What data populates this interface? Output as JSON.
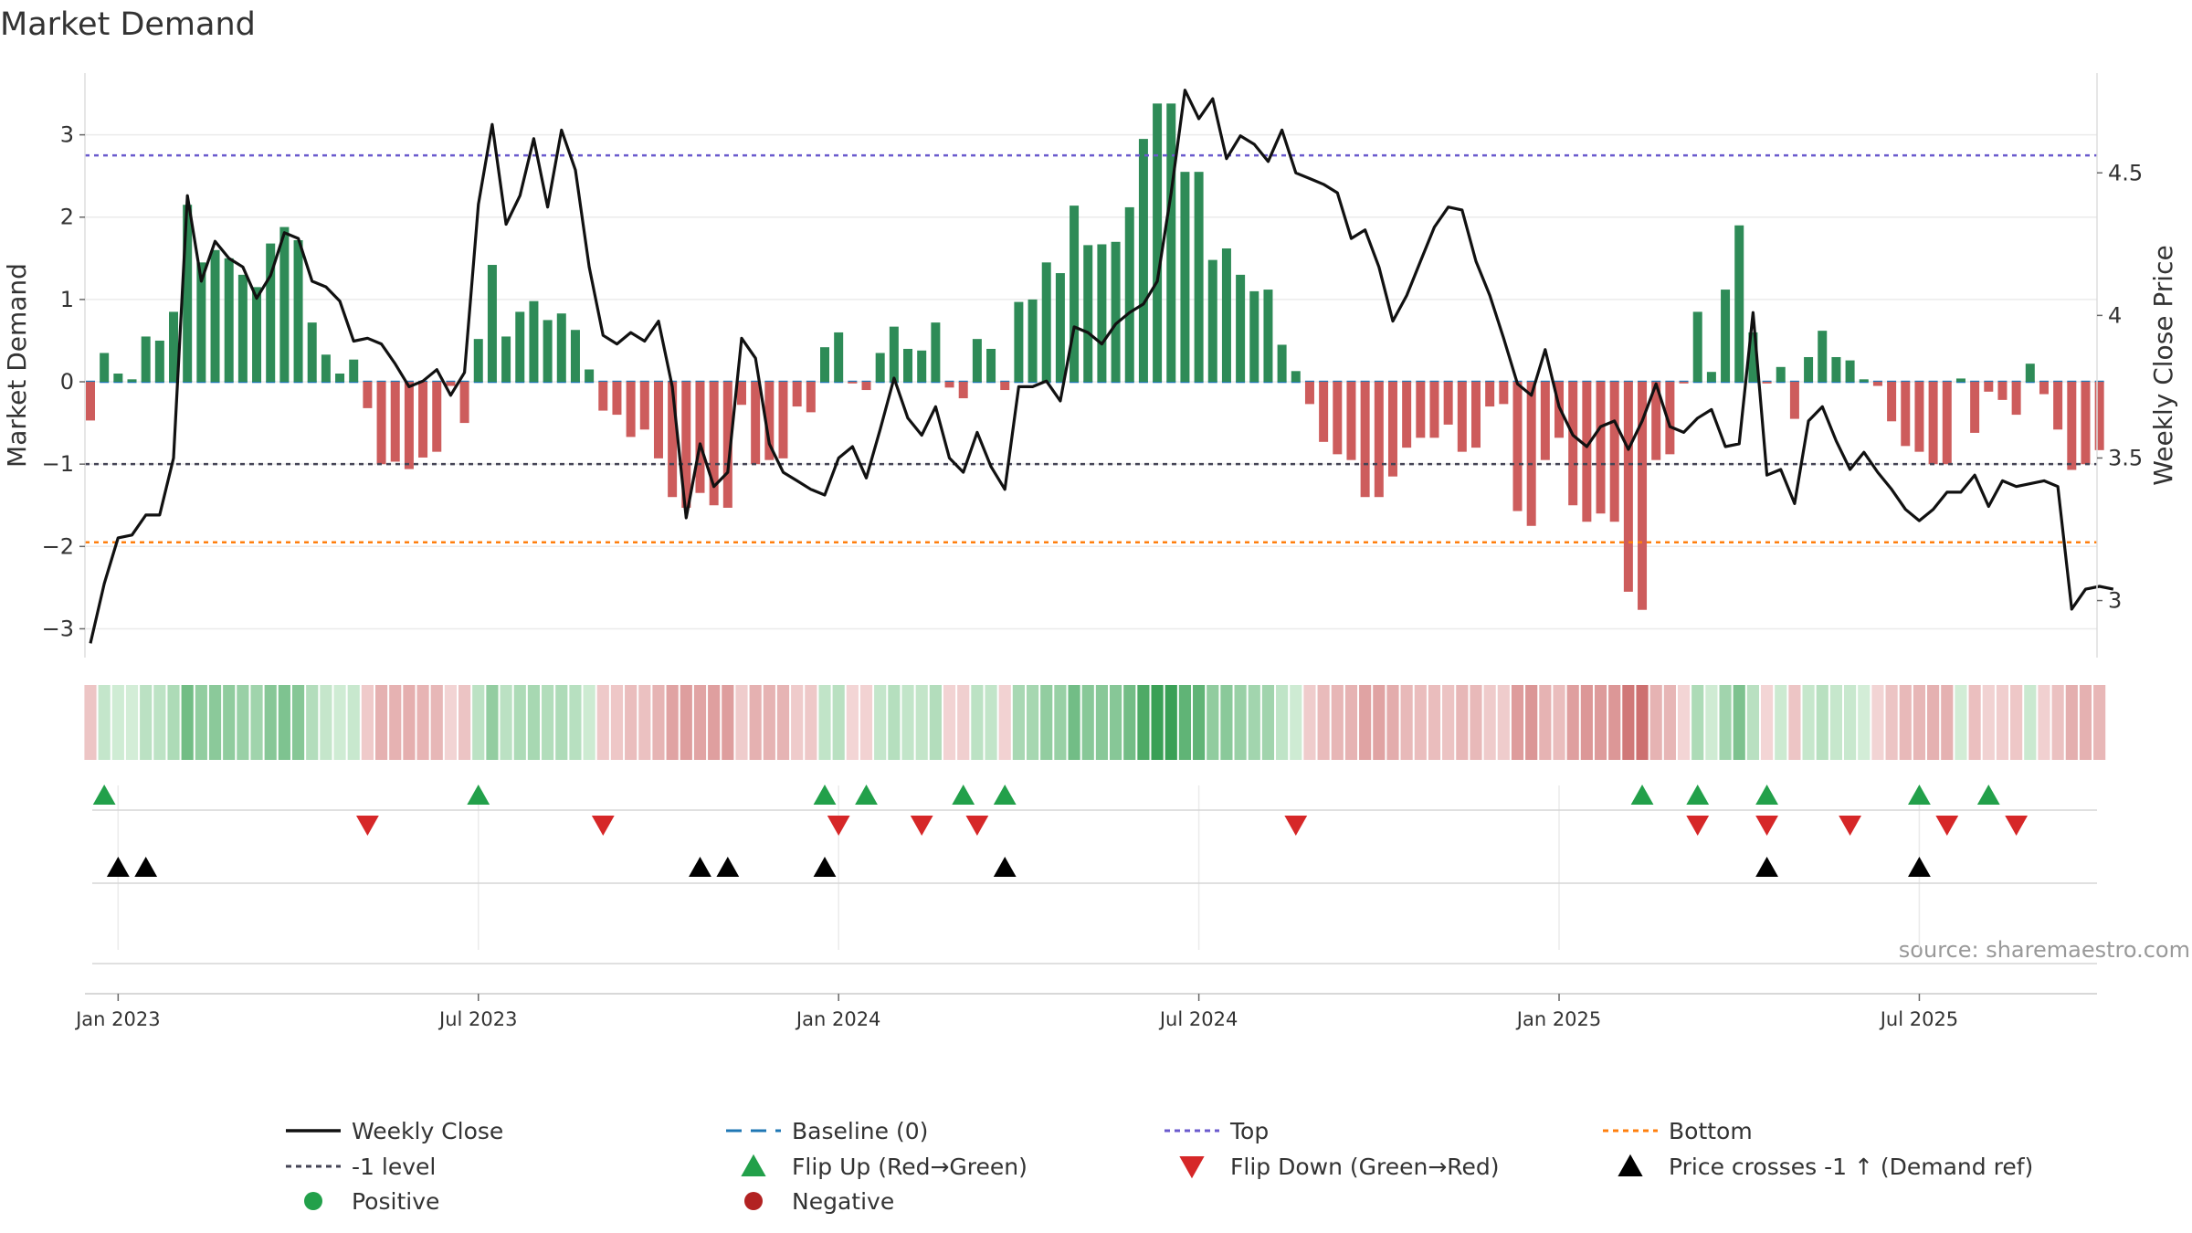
{
  "chart_data": {
    "type": "bar",
    "title": "Market Demand",
    "ylabel": "Market Demand",
    "y2label": "Weekly Close Price",
    "source": "source: sharemaestro.com",
    "ylim": [
      -3.35,
      3.75
    ],
    "y2lim": [
      2.8,
      4.85
    ],
    "yticks": [
      3,
      2,
      1,
      0,
      -1,
      -2,
      -3
    ],
    "ytick_labels": [
      "3",
      "2",
      "1",
      "0",
      "−1",
      "−2",
      "−3"
    ],
    "y2ticks": [
      4.5,
      4,
      3.5,
      3
    ],
    "y2tick_labels": [
      "4.5",
      "4",
      "3.5",
      "3"
    ],
    "xticks": [
      {
        "label": "Jan 2023",
        "week": 2
      },
      {
        "label": "Jul 2023",
        "week": 28
      },
      {
        "label": "Jan 2024",
        "week": 54
      },
      {
        "label": "Jul 2024",
        "week": 80
      },
      {
        "label": "Jan 2025",
        "week": 106
      },
      {
        "label": "Jul 2025",
        "week": 132
      }
    ],
    "levels": {
      "top": 2.75,
      "minus_one": -1.0,
      "bottom": -1.95
    },
    "colors": {
      "positive_bar": "#2e8b57",
      "negative_bar": "#cd5c5c",
      "price_line": "#111111",
      "baseline": "#1f77b4",
      "top": "#6a5acd",
      "minus_one": "#444455",
      "bottom": "#ff7f0e",
      "flip_up": "#22a04a",
      "flip_down": "#d62728",
      "cross": "#000000",
      "positive_dot": "#22a04a",
      "negative_dot": "#b22222",
      "source": "#999999"
    },
    "series": [
      {
        "name": "Market Demand",
        "values": [
          -0.47,
          0.35,
          0.1,
          0.03,
          0.55,
          0.5,
          0.85,
          2.15,
          1.45,
          1.6,
          1.5,
          1.3,
          1.15,
          1.68,
          1.88,
          1.72,
          0.72,
          0.33,
          0.1,
          0.27,
          -0.32,
          -1.0,
          -0.97,
          -1.06,
          -0.92,
          -0.85,
          -0.05,
          -0.5,
          0.52,
          1.42,
          0.55,
          0.85,
          0.98,
          0.75,
          0.83,
          0.63,
          0.15,
          -0.35,
          -0.4,
          -0.67,
          -0.58,
          -0.93,
          -1.4,
          -1.53,
          -1.35,
          -1.5,
          -1.53,
          -0.28,
          -1.0,
          -0.95,
          -0.93,
          -0.3,
          -0.37,
          0.42,
          0.6,
          -0.02,
          -0.1,
          0.35,
          0.67,
          0.4,
          0.38,
          0.72,
          -0.07,
          -0.2,
          0.52,
          0.4,
          -0.1,
          0.97,
          1.0,
          1.45,
          1.32,
          2.14,
          1.66,
          1.67,
          1.7,
          2.12,
          2.95,
          3.38,
          3.38,
          2.55,
          2.55,
          1.48,
          1.62,
          1.3,
          1.1,
          1.12,
          0.45,
          0.13,
          -0.27,
          -0.73,
          -0.88,
          -0.95,
          -1.4,
          -1.4,
          -1.15,
          -0.8,
          -0.68,
          -0.68,
          -0.52,
          -0.85,
          -0.8,
          -0.3,
          -0.27,
          -1.57,
          -1.75,
          -0.95,
          -0.68,
          -1.5,
          -1.7,
          -1.6,
          -1.7,
          -2.55,
          -2.77,
          -0.95,
          -0.88,
          -0.02,
          0.85,
          0.12,
          1.12,
          1.9,
          0.6,
          -0.02,
          0.18,
          -0.45,
          0.3,
          0.62,
          0.3,
          0.26,
          0.03,
          -0.05,
          -0.48,
          -0.78,
          -0.85,
          -1.0,
          -1.0,
          0.04,
          -0.62,
          -0.12,
          -0.22,
          -0.4,
          0.22,
          -0.15,
          -0.58,
          -1.07,
          -1.0,
          -0.83
        ]
      },
      {
        "name": "Weekly Close",
        "values": [
          2.85,
          3.06,
          3.22,
          3.23,
          3.3,
          3.3,
          3.5,
          4.42,
          4.12,
          4.26,
          4.2,
          4.17,
          4.06,
          4.14,
          4.29,
          4.27,
          4.12,
          4.1,
          4.05,
          3.91,
          3.92,
          3.9,
          3.83,
          3.75,
          3.77,
          3.81,
          3.72,
          3.8,
          4.39,
          4.67,
          4.32,
          4.42,
          4.62,
          4.38,
          4.65,
          4.51,
          4.17,
          3.93,
          3.9,
          3.94,
          3.91,
          3.98,
          3.75,
          3.29,
          3.55,
          3.4,
          3.45,
          3.92,
          3.85,
          3.55,
          3.45,
          3.42,
          3.39,
          3.37,
          3.5,
          3.54,
          3.43,
          3.6,
          3.78,
          3.64,
          3.58,
          3.68,
          3.5,
          3.45,
          3.59,
          3.47,
          3.39,
          3.75,
          3.75,
          3.77,
          3.7,
          3.96,
          3.94,
          3.9,
          3.97,
          4.01,
          4.04,
          4.12,
          4.43,
          4.79,
          4.69,
          4.76,
          4.55,
          4.63,
          4.6,
          4.54,
          4.65,
          4.5,
          4.48,
          4.46,
          4.43,
          4.27,
          4.3,
          4.17,
          3.98,
          4.07,
          4.19,
          4.31,
          4.38,
          4.37,
          4.19,
          4.07,
          3.92,
          3.76,
          3.72,
          3.88,
          3.68,
          3.58,
          3.54,
          3.61,
          3.63,
          3.53,
          3.63,
          3.76,
          3.61,
          3.59,
          3.64,
          3.67,
          3.54,
          3.55,
          4.01,
          3.44,
          3.46,
          3.34,
          3.63,
          3.68,
          3.56,
          3.46,
          3.52,
          3.45,
          3.39,
          3.32,
          3.28,
          3.32,
          3.38,
          3.38,
          3.44,
          3.33,
          3.42,
          3.4,
          3.41,
          3.42,
          3.4,
          2.97,
          3.04,
          3.05,
          3.04
        ]
      }
    ],
    "flip_up_weeks": [
      1,
      28,
      53,
      56,
      63,
      66,
      112,
      116,
      121,
      132,
      137
    ],
    "flip_down_weeks": [
      20,
      37,
      54,
      60,
      64,
      87,
      116,
      121,
      127,
      134,
      139
    ],
    "cross_weeks": [
      2,
      4,
      44,
      46,
      53,
      66,
      121,
      132
    ],
    "legend": [
      {
        "label": "Weekly Close",
        "kind": "line"
      },
      {
        "label": "Baseline (0)",
        "kind": "dash"
      },
      {
        "label": "Top",
        "kind": "dot"
      },
      {
        "label": "Bottom",
        "kind": "dot"
      },
      {
        "label": "-1 level",
        "kind": "dot"
      },
      {
        "label": "Flip Up (Red→Green)",
        "kind": "tri-up"
      },
      {
        "label": "Flip Down (Green→Red)",
        "kind": "tri-down"
      },
      {
        "label": "Price crosses -1 ↑ (Demand ref)",
        "kind": "tri-up-black"
      },
      {
        "label": "Positive",
        "kind": "dot-circle"
      },
      {
        "label": "Negative",
        "kind": "dot-circle"
      }
    ]
  }
}
